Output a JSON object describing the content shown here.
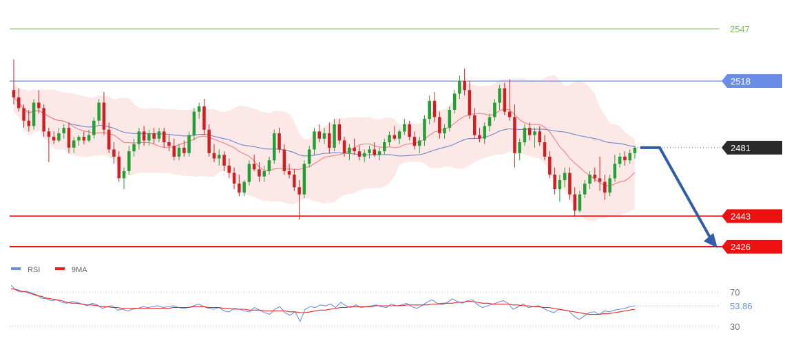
{
  "chart_data": [
    {
      "type": "candlestick",
      "ylim": [
        2418,
        2556
      ],
      "grid": false,
      "levels": [
        {
          "value": 2547,
          "label": "2547",
          "style": "line-text",
          "color": "#7cc35a"
        },
        {
          "value": 2518,
          "label": "2518",
          "style": "line-tag",
          "color": "#6a8ee8"
        },
        {
          "value": 2481,
          "label": "2481",
          "style": "dotted-tag",
          "color": "#2a2a2a"
        },
        {
          "value": 2443,
          "label": "2443",
          "style": "line-tag",
          "color": "#ee1111"
        },
        {
          "value": 2426,
          "label": "2426",
          "style": "line-tag",
          "color": "#ee1111"
        }
      ],
      "colors": {
        "up": "#22a033",
        "down": "#d21e1e",
        "band": "#fbd6d6",
        "ma_slow": "#6d85c8",
        "ma_fast": "#f08080",
        "forecast": "#2f5da8"
      },
      "forecast_arrow": {
        "from": 2481,
        "to": 2426
      },
      "candles": [
        [
          2513,
          2530,
          2505,
          2509
        ],
        [
          2509,
          2514,
          2501,
          2503
        ],
        [
          2503,
          2505,
          2492,
          2496
        ],
        [
          2496,
          2502,
          2490,
          2493
        ],
        [
          2493,
          2508,
          2491,
          2506
        ],
        [
          2506,
          2513,
          2500,
          2503
        ],
        [
          2503,
          2505,
          2487,
          2490
        ],
        [
          2490,
          2492,
          2473,
          2487
        ],
        [
          2487,
          2490,
          2483,
          2485
        ],
        [
          2485,
          2492,
          2484,
          2489
        ],
        [
          2489,
          2494,
          2486,
          2492
        ],
        [
          2492,
          2495,
          2478,
          2481
        ],
        [
          2481,
          2487,
          2478,
          2485
        ],
        [
          2485,
          2488,
          2482,
          2487
        ],
        [
          2487,
          2490,
          2483,
          2485
        ],
        [
          2485,
          2491,
          2484,
          2488
        ],
        [
          2488,
          2498,
          2486,
          2496
        ],
        [
          2496,
          2508,
          2494,
          2506
        ],
        [
          2506,
          2512,
          2488,
          2491
        ],
        [
          2491,
          2495,
          2478,
          2480
        ],
        [
          2480,
          2484,
          2472,
          2476
        ],
        [
          2476,
          2479,
          2462,
          2464
        ],
        [
          2464,
          2470,
          2458,
          2468
        ],
        [
          2468,
          2482,
          2466,
          2479
        ],
        [
          2479,
          2486,
          2476,
          2483
        ],
        [
          2483,
          2492,
          2480,
          2490
        ],
        [
          2490,
          2493,
          2482,
          2485
        ],
        [
          2485,
          2491,
          2482,
          2489
        ],
        [
          2489,
          2492,
          2483,
          2486
        ],
        [
          2486,
          2492,
          2484,
          2490
        ],
        [
          2490,
          2492,
          2481,
          2484
        ],
        [
          2484,
          2488,
          2479,
          2482
        ],
        [
          2482,
          2486,
          2474,
          2476
        ],
        [
          2476,
          2483,
          2474,
          2481
        ],
        [
          2481,
          2485,
          2476,
          2478
        ],
        [
          2478,
          2490,
          2476,
          2488
        ],
        [
          2488,
          2503,
          2485,
          2501
        ],
        [
          2501,
          2506,
          2497,
          2504
        ],
        [
          2504,
          2508,
          2488,
          2491
        ],
        [
          2491,
          2494,
          2476,
          2478
        ],
        [
          2478,
          2483,
          2473,
          2475
        ],
        [
          2475,
          2480,
          2471,
          2477
        ],
        [
          2477,
          2479,
          2468,
          2471
        ],
        [
          2471,
          2475,
          2464,
          2467
        ],
        [
          2467,
          2470,
          2458,
          2461
        ],
        [
          2461,
          2466,
          2454,
          2456
        ],
        [
          2456,
          2463,
          2454,
          2462
        ],
        [
          2462,
          2474,
          2460,
          2472
        ],
        [
          2472,
          2477,
          2468,
          2469
        ],
        [
          2469,
          2473,
          2462,
          2465
        ],
        [
          2465,
          2471,
          2462,
          2468
        ],
        [
          2468,
          2476,
          2466,
          2474
        ],
        [
          2474,
          2491,
          2472,
          2489
        ],
        [
          2489,
          2492,
          2478,
          2480
        ],
        [
          2480,
          2483,
          2466,
          2468
        ],
        [
          2468,
          2472,
          2464,
          2466
        ],
        [
          2466,
          2469,
          2457,
          2459
        ],
        [
          2459,
          2463,
          2441,
          2455
        ],
        [
          2455,
          2474,
          2453,
          2472
        ],
        [
          2472,
          2482,
          2470,
          2480
        ],
        [
          2480,
          2492,
          2477,
          2490
        ],
        [
          2490,
          2494,
          2484,
          2486
        ],
        [
          2486,
          2492,
          2483,
          2489
        ],
        [
          2489,
          2495,
          2478,
          2481
        ],
        [
          2481,
          2497,
          2479,
          2494
        ],
        [
          2494,
          2497,
          2483,
          2485
        ],
        [
          2485,
          2487,
          2476,
          2478
        ],
        [
          2478,
          2483,
          2474,
          2481
        ],
        [
          2481,
          2486,
          2477,
          2479
        ],
        [
          2479,
          2482,
          2474,
          2476
        ],
        [
          2476,
          2480,
          2473,
          2478
        ],
        [
          2478,
          2482,
          2475,
          2480
        ],
        [
          2480,
          2484,
          2476,
          2477
        ],
        [
          2477,
          2481,
          2474,
          2479
        ],
        [
          2479,
          2486,
          2477,
          2484
        ],
        [
          2484,
          2490,
          2482,
          2488
        ],
        [
          2488,
          2493,
          2485,
          2486
        ],
        [
          2486,
          2491,
          2483,
          2490
        ],
        [
          2490,
          2497,
          2488,
          2494
        ],
        [
          2494,
          2496,
          2485,
          2487
        ],
        [
          2487,
          2490,
          2480,
          2482
        ],
        [
          2482,
          2487,
          2478,
          2485
        ],
        [
          2485,
          2499,
          2482,
          2497
        ],
        [
          2497,
          2510,
          2494,
          2507
        ],
        [
          2507,
          2512,
          2495,
          2498
        ],
        [
          2498,
          2501,
          2486,
          2489
        ],
        [
          2489,
          2494,
          2486,
          2492
        ],
        [
          2492,
          2504,
          2490,
          2502
        ],
        [
          2502,
          2513,
          2500,
          2511
        ],
        [
          2511,
          2521,
          2508,
          2518
        ],
        [
          2518,
          2525,
          2510,
          2513
        ],
        [
          2513,
          2518,
          2497,
          2499
        ],
        [
          2499,
          2503,
          2486,
          2488
        ],
        [
          2488,
          2492,
          2484,
          2486
        ],
        [
          2486,
          2495,
          2483,
          2493
        ],
        [
          2493,
          2500,
          2490,
          2498
        ],
        [
          2498,
          2508,
          2496,
          2506
        ],
        [
          2506,
          2516,
          2502,
          2514
        ],
        [
          2514,
          2517,
          2499,
          2501
        ],
        [
          2501,
          2519,
          2496,
          2498
        ],
        [
          2498,
          2505,
          2470,
          2478
        ],
        [
          2478,
          2486,
          2474,
          2484
        ],
        [
          2484,
          2494,
          2482,
          2492
        ],
        [
          2492,
          2495,
          2485,
          2488
        ],
        [
          2488,
          2492,
          2481,
          2490
        ],
        [
          2490,
          2493,
          2482,
          2484
        ],
        [
          2484,
          2488,
          2474,
          2476
        ],
        [
          2476,
          2479,
          2464,
          2466
        ],
        [
          2466,
          2470,
          2455,
          2458
        ],
        [
          2458,
          2466,
          2451,
          2463
        ],
        [
          2463,
          2470,
          2459,
          2467
        ],
        [
          2467,
          2470,
          2452,
          2455
        ],
        [
          2455,
          2459,
          2443,
          2446
        ],
        [
          2446,
          2457,
          2445,
          2455
        ],
        [
          2455,
          2463,
          2453,
          2461
        ],
        [
          2461,
          2468,
          2458,
          2466
        ],
        [
          2466,
          2470,
          2462,
          2464
        ],
        [
          2464,
          2476,
          2457,
          2462
        ],
        [
          2462,
          2466,
          2452,
          2456
        ],
        [
          2456,
          2466,
          2454,
          2464
        ],
        [
          2464,
          2477,
          2462,
          2472
        ],
        [
          2472,
          2478,
          2470,
          2476
        ],
        [
          2476,
          2479,
          2471,
          2474
        ],
        [
          2474,
          2480,
          2472,
          2478
        ],
        [
          2478,
          2482,
          2475,
          2481
        ]
      ]
    },
    {
      "type": "line",
      "ylim": [
        20,
        90
      ],
      "legend": [
        {
          "name": "RSI",
          "color": "#6a8ee8"
        },
        {
          "name": "9MA",
          "color": "#e82020"
        }
      ],
      "y_ticks": [
        {
          "value": 70,
          "label": "70"
        },
        {
          "value": 30,
          "label": "30"
        }
      ],
      "last_value": {
        "value": 53.86,
        "label": "53.86"
      },
      "series": [
        {
          "name": "RSI",
          "values": [
            78,
            72,
            70,
            71,
            69,
            67,
            63,
            62,
            60,
            61,
            58,
            57,
            59,
            58,
            56,
            54,
            57,
            55,
            51,
            53,
            54,
            49,
            50,
            48,
            50,
            51,
            53,
            52,
            53,
            54,
            52,
            53,
            54,
            52,
            51,
            52,
            54,
            56,
            53,
            51,
            50,
            52,
            48,
            47,
            51,
            50,
            48,
            47,
            52,
            49,
            46,
            44,
            50,
            53,
            46,
            43,
            47,
            36,
            50,
            53,
            52,
            55,
            54,
            56,
            52,
            58,
            54,
            52,
            55,
            52,
            53,
            54,
            55,
            53,
            52,
            56,
            54,
            55,
            57,
            53,
            51,
            54,
            58,
            61,
            57,
            55,
            58,
            62,
            59,
            57,
            60,
            61,
            55,
            52,
            54,
            56,
            58,
            60,
            57,
            50,
            53,
            56,
            52,
            53,
            54,
            51,
            48,
            46,
            50,
            49,
            48,
            42,
            38,
            42,
            46,
            47,
            44,
            48,
            47,
            49,
            50,
            51,
            53,
            54
          ]
        },
        {
          "name": "9MA",
          "values": [
            74,
            73,
            71,
            70,
            68,
            66,
            65,
            63,
            62,
            61,
            60,
            58,
            57,
            57,
            56,
            55,
            55,
            54,
            53,
            53,
            52,
            52,
            51,
            51,
            51,
            51,
            51,
            51,
            51,
            51,
            51,
            51,
            52,
            52,
            52,
            52,
            53,
            53,
            53,
            52,
            52,
            52,
            51,
            51,
            50,
            50,
            50,
            49,
            49,
            49,
            48,
            48,
            48,
            48,
            48,
            47,
            47,
            46,
            46,
            47,
            48,
            49,
            49,
            50,
            51,
            52,
            52,
            53,
            53,
            53,
            53,
            53,
            54,
            54,
            54,
            54,
            54,
            54,
            55,
            55,
            55,
            55,
            55,
            56,
            56,
            57,
            57,
            57,
            58,
            58,
            59,
            59,
            58,
            57,
            57,
            56,
            56,
            56,
            56,
            55,
            55,
            54,
            54,
            53,
            53,
            52,
            52,
            51,
            50,
            49,
            48,
            47,
            46,
            45,
            44,
            44,
            44,
            45,
            45,
            46,
            47,
            48,
            49,
            50
          ]
        }
      ]
    }
  ]
}
